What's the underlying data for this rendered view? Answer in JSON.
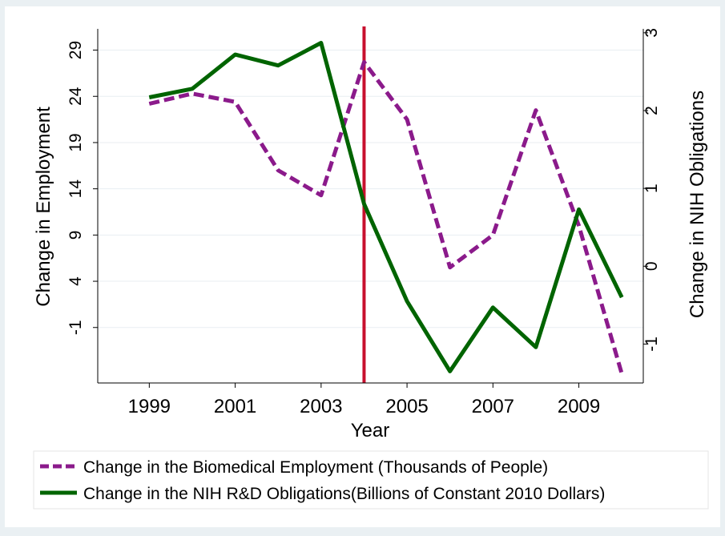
{
  "chart_data": {
    "type": "line",
    "title": "",
    "xlabel": "Year",
    "ylabel_left": "Change in Employment",
    "ylabel_right": "Change in NIH Obligations",
    "x_ticks": [
      "1999",
      "2001",
      "2003",
      "2005",
      "2007",
      "2009"
    ],
    "y_left_ticks": [
      "29",
      "24",
      "19",
      "14",
      "9",
      "4",
      "-1"
    ],
    "y_right_ticks": [
      "3",
      "2",
      "1",
      "0",
      "-1"
    ],
    "x_range": [
      1997.8,
      2010.5
    ],
    "y_left_range": [
      -7,
      31.3
    ],
    "y_right_range": [
      -1.5,
      3.05
    ],
    "grid": true,
    "legend_position": "bottom",
    "vertical_line": {
      "x": 2004,
      "color": "#c8102e"
    },
    "series": [
      {
        "name": "Change in the Biomedical Employment (Thousands of People)",
        "axis": "left",
        "color": "#8b1a8b",
        "style": "dashed",
        "x": [
          1999,
          2000,
          2001,
          2002,
          2003,
          2004,
          2005,
          2006,
          2007,
          2008,
          2009,
          2010
        ],
        "values": [
          23.2,
          24.3,
          23.4,
          16,
          13.3,
          27.7,
          21.5,
          5.5,
          9,
          22.5,
          10,
          -6
        ]
      },
      {
        "name": "Change in the NIH R&D Obligations(Billions of Constant 2010 Dollars)",
        "axis": "right",
        "color": "#006400",
        "style": "solid",
        "x": [
          1999,
          2000,
          2001,
          2002,
          2003,
          2004,
          2005,
          2006,
          2007,
          2008,
          2009,
          2010
        ],
        "values": [
          2.17,
          2.28,
          2.72,
          2.58,
          2.87,
          0.8,
          -0.45,
          -1.35,
          -0.53,
          -1.04,
          0.73,
          -0.4
        ]
      }
    ]
  }
}
